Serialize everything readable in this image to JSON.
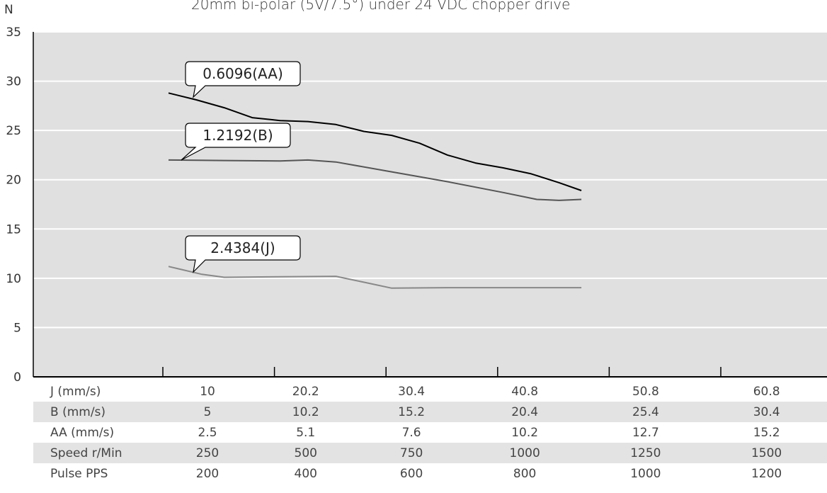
{
  "chart_data": {
    "type": "line",
    "title": "20mm bi-polar (5V/7.5°) under 24 VDC chopper drive",
    "ylabel": "N",
    "ylim": [
      0,
      35
    ],
    "yticks": [
      0,
      5,
      10,
      15,
      20,
      25,
      30,
      35
    ],
    "grid": true,
    "x": [
      0,
      1,
      2,
      3,
      4,
      5
    ],
    "series": [
      {
        "name": "0.6096(AA)",
        "color": "#000000",
        "points": [
          [
            0,
            28.8
          ],
          [
            0.25,
            28.1
          ],
          [
            0.5,
            27.3
          ],
          [
            0.75,
            26.3
          ],
          [
            1,
            26.0
          ],
          [
            1.25,
            25.9
          ],
          [
            1.5,
            25.6
          ],
          [
            1.75,
            24.9
          ],
          [
            2,
            24.5
          ],
          [
            2.25,
            23.7
          ],
          [
            2.5,
            22.5
          ],
          [
            2.75,
            21.7
          ],
          [
            3,
            21.2
          ],
          [
            3.25,
            20.6
          ],
          [
            3.5,
            19.7
          ],
          [
            3.7,
            18.9
          ]
        ]
      },
      {
        "name": "1.2192(B)",
        "color": "#555555",
        "points": [
          [
            0,
            22.0
          ],
          [
            0.5,
            21.95
          ],
          [
            1,
            21.9
          ],
          [
            1.25,
            22.0
          ],
          [
            1.5,
            21.8
          ],
          [
            2,
            20.8
          ],
          [
            2.5,
            19.8
          ],
          [
            3,
            18.7
          ],
          [
            3.3,
            18.0
          ],
          [
            3.5,
            17.9
          ],
          [
            3.7,
            18.0
          ]
        ]
      },
      {
        "name": "2.4384(J)",
        "color": "#888888",
        "points": [
          [
            0,
            11.2
          ],
          [
            0.3,
            10.4
          ],
          [
            0.5,
            10.1
          ],
          [
            1,
            10.15
          ],
          [
            1.5,
            10.2
          ],
          [
            1.75,
            9.6
          ],
          [
            2,
            9.0
          ],
          [
            2.5,
            9.05
          ],
          [
            3,
            9.05
          ],
          [
            3.7,
            9.05
          ]
        ]
      }
    ],
    "table": [
      {
        "label": "J (mm/s)",
        "values": [
          "10",
          "20.2",
          "30.4",
          "40.8",
          "50.8",
          "60.8"
        ]
      },
      {
        "label": "B (mm/s)",
        "values": [
          "5",
          "10.2",
          "15.2",
          "20.4",
          "25.4",
          "30.4"
        ]
      },
      {
        "label": "AA (mm/s)",
        "values": [
          "2.5",
          "5.1",
          "7.6",
          "10.2",
          "12.7",
          "15.2"
        ]
      },
      {
        "label": "Speed  r/Min",
        "values": [
          "250",
          "500",
          "750",
          "1000",
          "1250",
          "1500"
        ]
      },
      {
        "label": "Pulse   PPS",
        "values": [
          "200",
          "400",
          "600",
          "800",
          "1000",
          "1200"
        ]
      }
    ]
  }
}
